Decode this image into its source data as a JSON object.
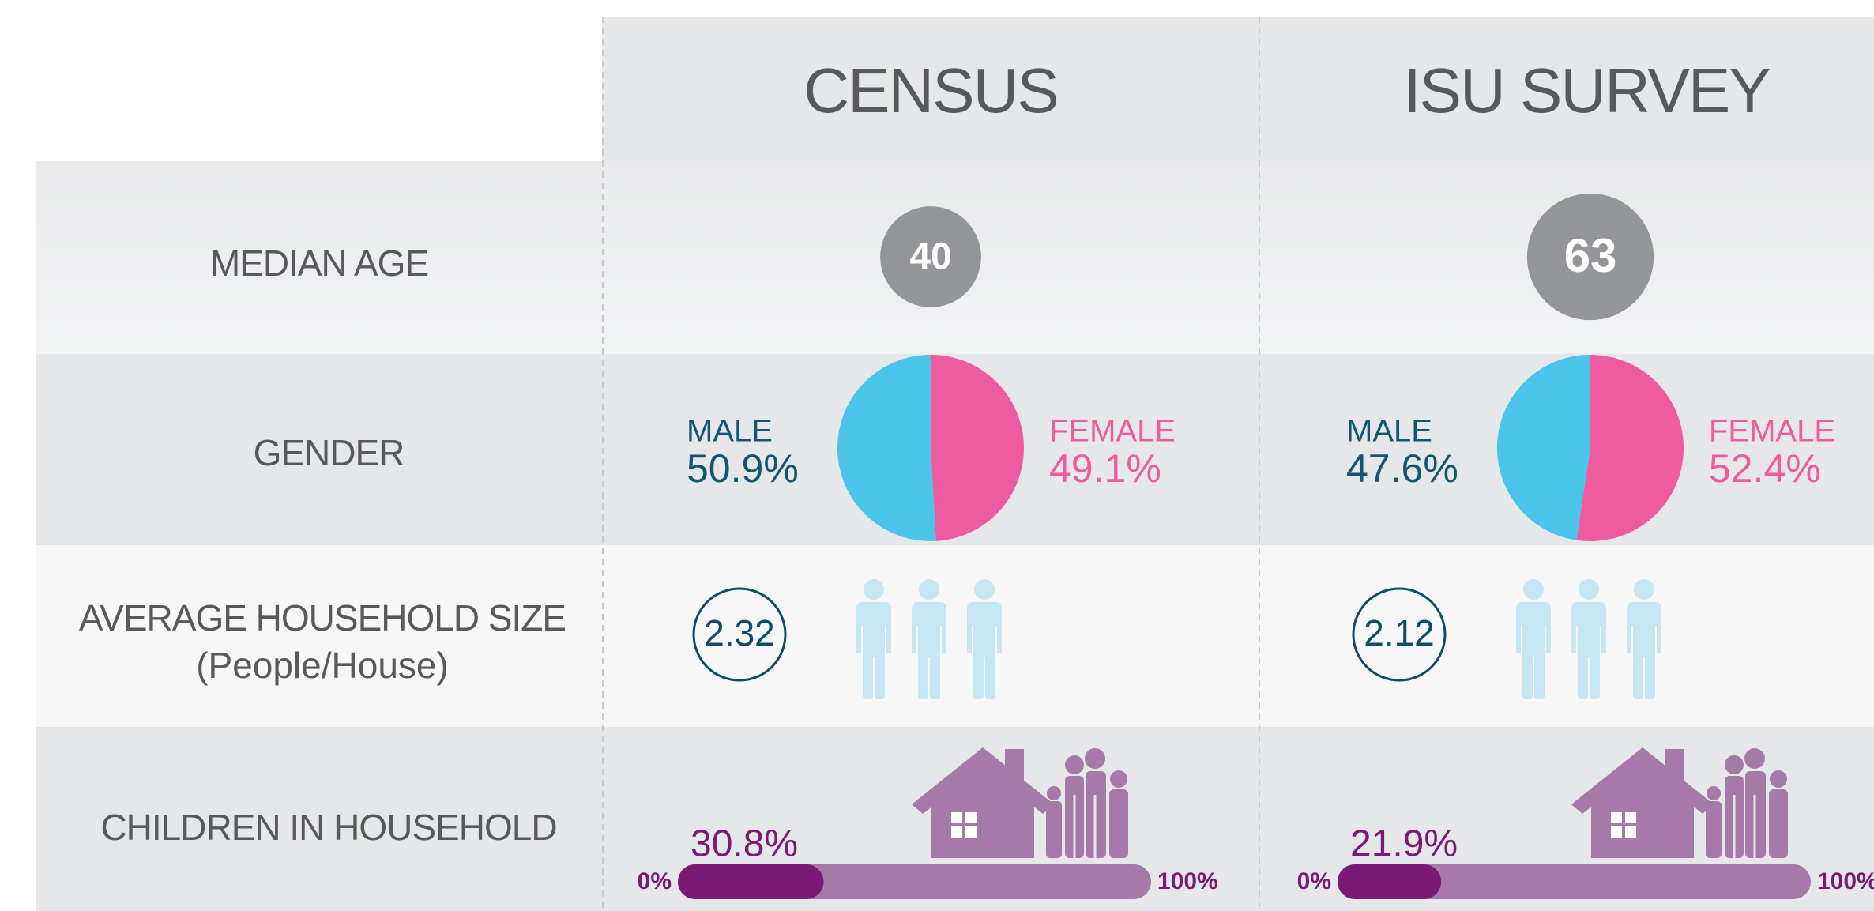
{
  "header": {
    "columns": [
      "CENSUS",
      "ISU SURVEY"
    ]
  },
  "rows": {
    "median_age": "MEDIAN AGE",
    "gender": "GENDER",
    "household_size": "AVERAGE HOUSEHOLD SIZE",
    "household_size_unit": "(People/House)",
    "children": "CHILDREN IN HOUSEHOLD"
  },
  "median_age": {
    "values": [
      40,
      63
    ],
    "color": "#939598"
  },
  "gender": {
    "male_label": "MALE",
    "female_label": "FEMALE",
    "male": {
      "color": "#4ac4e8",
      "text_color": "#13566f",
      "values": [
        50.9,
        47.6
      ],
      "value_labels": [
        "50.9%",
        "47.6%"
      ]
    },
    "female": {
      "color": "#ef5ba1",
      "text_color": "#ef5ba1",
      "values": [
        49.1,
        52.4
      ],
      "value_labels": [
        "49.1%",
        "52.4%"
      ]
    }
  },
  "household_size": {
    "values": [
      2.32,
      2.12
    ],
    "color": "#0e4d63",
    "empty_color": "#c6e6f3"
  },
  "children": {
    "values": [
      30.8,
      21.9
    ],
    "value_labels": [
      "30.8%",
      "21.9%"
    ],
    "color": "#7a1a76",
    "track_color": "#a57aa9",
    "scale_min": {
      "value": 0,
      "label": "0%"
    },
    "scale_max": {
      "value": 100,
      "label": "100%"
    }
  }
}
